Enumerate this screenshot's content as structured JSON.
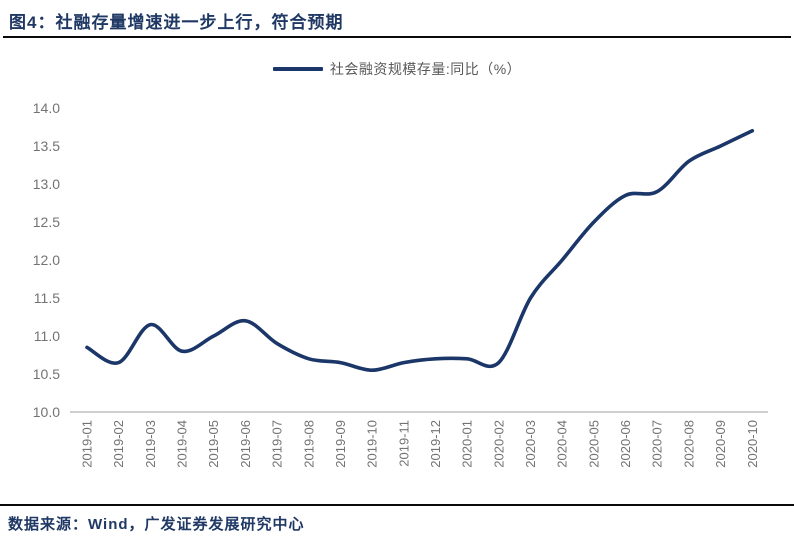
{
  "header": {
    "title": "图4：社融存量增速进一步上行，符合预期"
  },
  "legend": {
    "label": "社会融资规模存量:同比（%）"
  },
  "footer": {
    "source": "数据来源：Wind，广发证券发展研究中心"
  },
  "colors": {
    "line": "#1B3668",
    "title_text": "#1F3864",
    "footer_text": "#1F3864",
    "legend_text": "#595959",
    "tick_label": "#737373",
    "axis_line": "#BFBFBF",
    "rule": "#0A0A0A"
  },
  "chart_data": {
    "type": "line",
    "title": "图4：社融存量增速进一步上行，符合预期",
    "categories": [
      "2019-01",
      "2019-02",
      "2019-03",
      "2019-04",
      "2019-05",
      "2019-06",
      "2019-07",
      "2019-08",
      "2019-09",
      "2019-10",
      "2019-11",
      "2019-12",
      "2020-01",
      "2020-02",
      "2020-03",
      "2020-04",
      "2020-05",
      "2020-06",
      "2020-07",
      "2020-08",
      "2020-09",
      "2020-10"
    ],
    "series": [
      {
        "name": "社会融资规模存量:同比（%）",
        "values": [
          10.85,
          10.65,
          11.15,
          10.8,
          11.0,
          11.2,
          10.9,
          10.7,
          10.65,
          10.55,
          10.65,
          10.7,
          10.7,
          10.65,
          11.5,
          12.0,
          12.5,
          12.85,
          12.9,
          13.3,
          13.5,
          13.7
        ]
      }
    ],
    "xlabel": "",
    "ylabel": "",
    "ylim": [
      10.0,
      14.0
    ],
    "ytick_step": 0.5,
    "y_tick_labels": [
      "10.0",
      "10.5",
      "11.0",
      "11.5",
      "12.0",
      "12.5",
      "13.0",
      "13.5",
      "14.0"
    ],
    "grid": false,
    "legend_position": "top-center",
    "line_style": "smooth"
  }
}
